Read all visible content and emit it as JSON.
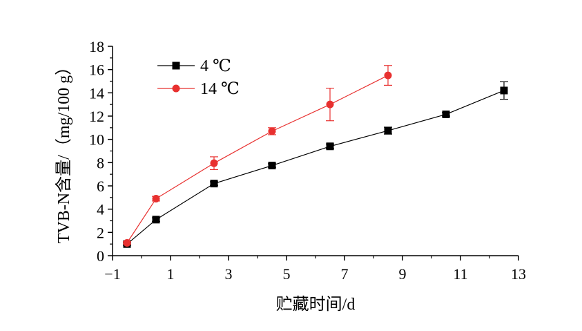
{
  "chart_data": {
    "type": "line",
    "xlabel": "贮藏时间/d",
    "ylabel": "TVB-N含量/（mg/100 g）",
    "xlim": [
      -1,
      13
    ],
    "ylim": [
      0,
      18
    ],
    "xticks": [
      -1,
      1,
      3,
      5,
      7,
      9,
      11,
      13
    ],
    "xtick_labels": [
      "−1",
      "1",
      "3",
      "5",
      "7",
      "9",
      "11",
      "13"
    ],
    "yticks": [
      0,
      2,
      4,
      6,
      8,
      10,
      12,
      14,
      16,
      18
    ],
    "ytick_labels": [
      "0",
      "2",
      "4",
      "6",
      "8",
      "10",
      "12",
      "14",
      "16",
      "18"
    ],
    "grid": false,
    "legend_position": "top-left",
    "series": [
      {
        "name": "4 ℃",
        "color": "#000000",
        "marker": "square",
        "x": [
          -0.5,
          0.5,
          2.5,
          4.5,
          6.5,
          8.5,
          10.5,
          12.5
        ],
        "y": [
          1.0,
          3.1,
          6.2,
          7.75,
          9.4,
          10.75,
          12.15,
          14.2
        ],
        "error": [
          0.1,
          0.15,
          0.15,
          0.15,
          0.2,
          0.3,
          0.15,
          0.75
        ]
      },
      {
        "name": "14 ℃",
        "color": "#e8302f",
        "marker": "circle",
        "x": [
          -0.5,
          0.5,
          2.5,
          4.5,
          6.5,
          8.5
        ],
        "y": [
          1.1,
          4.9,
          7.95,
          10.7,
          13.0,
          15.5
        ],
        "error": [
          0.1,
          0.2,
          0.55,
          0.3,
          1.4,
          0.85
        ]
      }
    ]
  }
}
